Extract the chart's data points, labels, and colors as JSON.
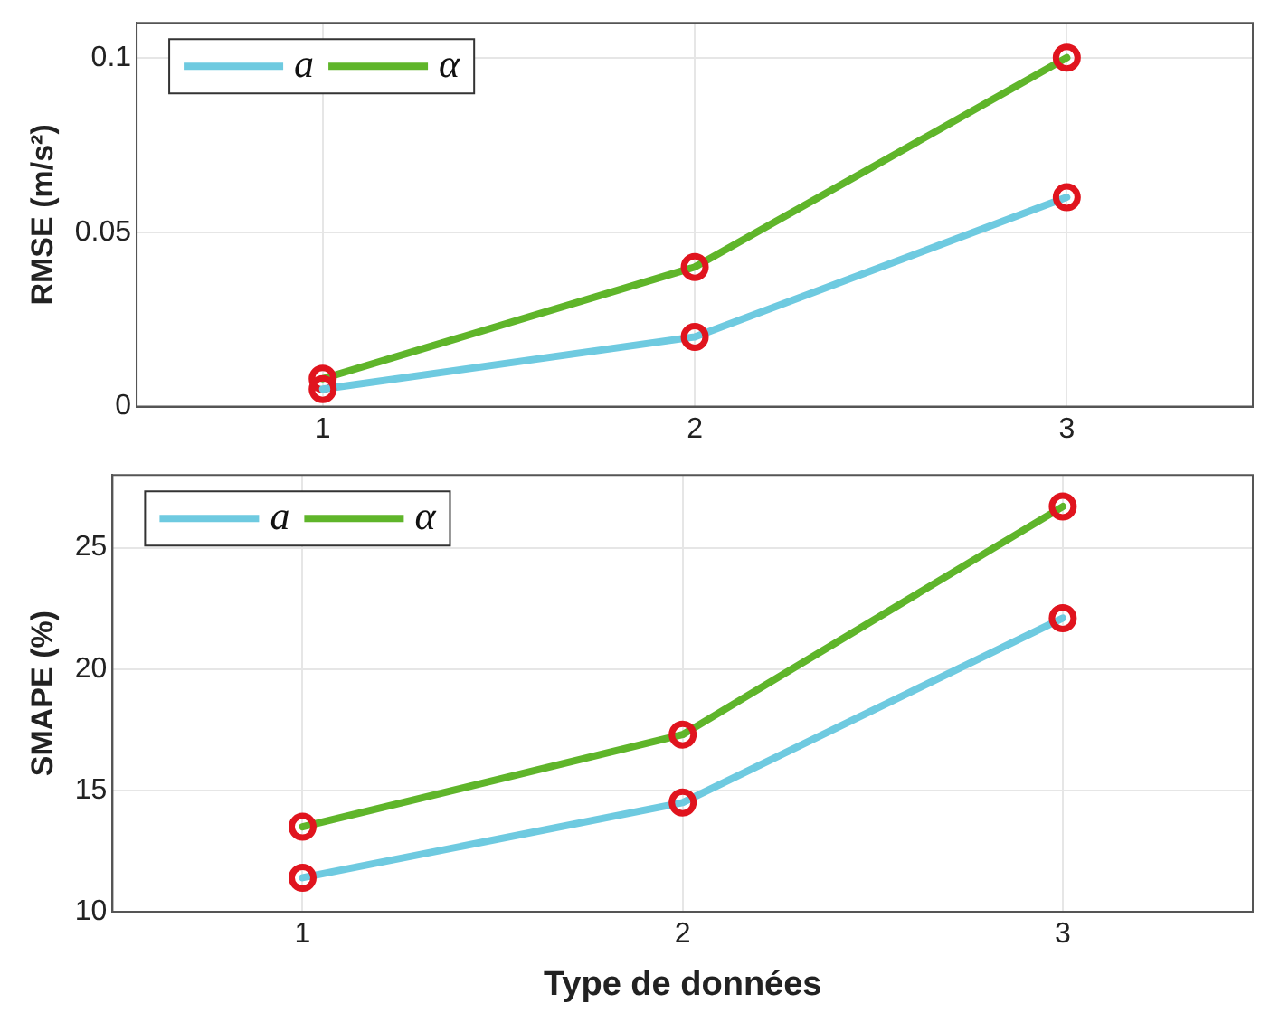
{
  "chart_data": [
    {
      "type": "line",
      "ylabel": "RMSE (m/s²)",
      "x": [
        1,
        2,
        3
      ],
      "xlim": [
        0.5,
        3.5
      ],
      "xticks": [
        1,
        2,
        3
      ],
      "ylim": [
        0,
        0.11
      ],
      "yticks": [
        0,
        0.05,
        0.1
      ],
      "grid": true,
      "legend": "top left",
      "marker": "circle",
      "line_style": "solid",
      "series": [
        {
          "name": "a",
          "color": "#6ecae0",
          "values": [
            0.005,
            0.02,
            0.06
          ]
        },
        {
          "name": "α",
          "color": "#5fb52a",
          "values": [
            0.008,
            0.04,
            0.1
          ]
        }
      ]
    },
    {
      "type": "line",
      "ylabel": "SMAPE (%)",
      "xlabel": "Type de données",
      "x": [
        1,
        2,
        3
      ],
      "xlim": [
        0.5,
        3.5
      ],
      "xticks": [
        1,
        2,
        3
      ],
      "ylim": [
        10,
        28
      ],
      "yticks": [
        10,
        15,
        20,
        25
      ],
      "grid": true,
      "legend": "top left",
      "marker": "circle",
      "line_style": "solid",
      "series": [
        {
          "name": "a",
          "color": "#6ecae0",
          "values": [
            11.4,
            14.5,
            22.1
          ]
        },
        {
          "name": "α",
          "color": "#5fb52a",
          "values": [
            13.5,
            17.3,
            26.7
          ]
        }
      ]
    }
  ]
}
